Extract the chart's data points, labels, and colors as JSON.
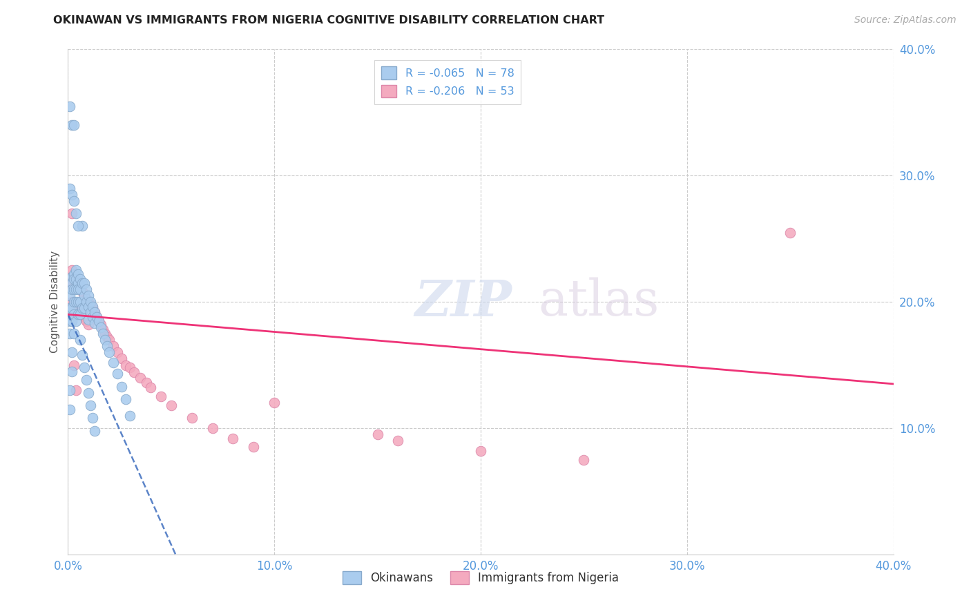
{
  "title": "OKINAWAN VS IMMIGRANTS FROM NIGERIA COGNITIVE DISABILITY CORRELATION CHART",
  "source": "Source: ZipAtlas.com",
  "ylabel": "Cognitive Disability",
  "xmin": 0.0,
  "xmax": 0.4,
  "ymin": 0.0,
  "ymax": 0.4,
  "xticks": [
    0.0,
    0.1,
    0.2,
    0.3,
    0.4
  ],
  "yticks": [
    0.1,
    0.2,
    0.3,
    0.4
  ],
  "xtick_labels": [
    "0.0%",
    "10.0%",
    "20.0%",
    "30.0%",
    "40.0%"
  ],
  "ytick_labels": [
    "10.0%",
    "20.0%",
    "30.0%",
    "40.0%"
  ],
  "background_color": "#ffffff",
  "grid_color": "#cccccc",
  "blue_scatter_color": "#aaccee",
  "blue_scatter_edge": "#88aacc",
  "pink_scatter_color": "#f4aabf",
  "pink_scatter_edge": "#dd88aa",
  "trend_blue_color": "#3366bb",
  "trend_pink_color": "#ee3377",
  "R_blue": -0.065,
  "N_blue": 78,
  "R_pink": -0.206,
  "N_pink": 53,
  "legend_label_blue": "Okinawans",
  "legend_label_pink": "Immigrants from Nigeria",
  "watermark_zip": "ZIP",
  "watermark_atlas": "atlas",
  "tick_color": "#5599dd",
  "okinawan_x": [
    0.001,
    0.001,
    0.001,
    0.001,
    0.001,
    0.001,
    0.002,
    0.002,
    0.002,
    0.002,
    0.002,
    0.002,
    0.002,
    0.003,
    0.003,
    0.003,
    0.003,
    0.003,
    0.003,
    0.004,
    0.004,
    0.004,
    0.004,
    0.004,
    0.005,
    0.005,
    0.005,
    0.005,
    0.005,
    0.006,
    0.006,
    0.006,
    0.006,
    0.007,
    0.007,
    0.007,
    0.008,
    0.008,
    0.008,
    0.009,
    0.009,
    0.01,
    0.01,
    0.01,
    0.011,
    0.011,
    0.012,
    0.012,
    0.013,
    0.013,
    0.014,
    0.015,
    0.016,
    0.017,
    0.018,
    0.019,
    0.02,
    0.022,
    0.024,
    0.026,
    0.028,
    0.03,
    0.001,
    0.001,
    0.002,
    0.002,
    0.003,
    0.003,
    0.004,
    0.005,
    0.006,
    0.007,
    0.008,
    0.009,
    0.01,
    0.011,
    0.012,
    0.013
  ],
  "okinawan_y": [
    0.205,
    0.195,
    0.185,
    0.175,
    0.13,
    0.115,
    0.22,
    0.215,
    0.21,
    0.195,
    0.185,
    0.16,
    0.145,
    0.222,
    0.218,
    0.21,
    0.2,
    0.19,
    0.175,
    0.225,
    0.218,
    0.21,
    0.2,
    0.185,
    0.222,
    0.215,
    0.21,
    0.2,
    0.19,
    0.218,
    0.21,
    0.2,
    0.19,
    0.26,
    0.215,
    0.195,
    0.215,
    0.205,
    0.195,
    0.21,
    0.2,
    0.205,
    0.196,
    0.186,
    0.2,
    0.192,
    0.196,
    0.188,
    0.192,
    0.183,
    0.188,
    0.185,
    0.18,
    0.175,
    0.17,
    0.165,
    0.16,
    0.152,
    0.143,
    0.133,
    0.123,
    0.11,
    0.355,
    0.29,
    0.34,
    0.285,
    0.34,
    0.28,
    0.27,
    0.26,
    0.17,
    0.158,
    0.148,
    0.138,
    0.128,
    0.118,
    0.108,
    0.098
  ],
  "nigeria_x": [
    0.001,
    0.002,
    0.002,
    0.003,
    0.003,
    0.004,
    0.004,
    0.005,
    0.005,
    0.006,
    0.006,
    0.007,
    0.007,
    0.008,
    0.008,
    0.009,
    0.009,
    0.01,
    0.01,
    0.011,
    0.012,
    0.013,
    0.014,
    0.015,
    0.016,
    0.017,
    0.018,
    0.019,
    0.02,
    0.022,
    0.024,
    0.026,
    0.028,
    0.03,
    0.032,
    0.035,
    0.038,
    0.04,
    0.045,
    0.05,
    0.06,
    0.07,
    0.08,
    0.09,
    0.1,
    0.15,
    0.16,
    0.2,
    0.25,
    0.002,
    0.003,
    0.004,
    0.35
  ],
  "nigeria_y": [
    0.215,
    0.225,
    0.2,
    0.22,
    0.195,
    0.218,
    0.195,
    0.215,
    0.195,
    0.212,
    0.192,
    0.208,
    0.19,
    0.205,
    0.188,
    0.202,
    0.185,
    0.2,
    0.182,
    0.198,
    0.195,
    0.192,
    0.188,
    0.185,
    0.182,
    0.178,
    0.175,
    0.172,
    0.17,
    0.165,
    0.16,
    0.155,
    0.15,
    0.148,
    0.144,
    0.14,
    0.136,
    0.132,
    0.125,
    0.118,
    0.108,
    0.1,
    0.092,
    0.085,
    0.12,
    0.095,
    0.09,
    0.082,
    0.075,
    0.27,
    0.15,
    0.13,
    0.255
  ]
}
